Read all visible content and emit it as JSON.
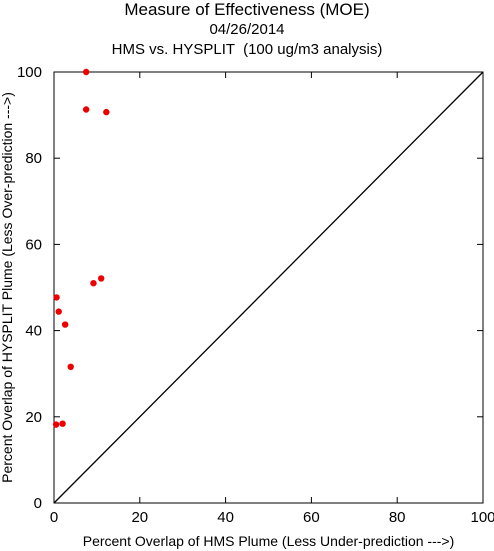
{
  "chart_data": {
    "type": "scatter",
    "title": "Measure of Effectiveness (MOE)",
    "subtitle": "04/26/2014",
    "subtitle2": "HMS vs. HYSPLIT  (100 ug/m3 analysis)",
    "xlabel": "Percent Overlap of HMS Plume (Less Under-prediction --->)",
    "ylabel": "Percent Overlap of HYSPLIT Plume (Less Over-prediction --->)",
    "xlim": [
      0,
      100
    ],
    "ylim": [
      0,
      100
    ],
    "xticks": [
      "0",
      "20",
      "40",
      "60",
      "80",
      "100"
    ],
    "yticks": [
      "0",
      "20",
      "40",
      "60",
      "80",
      "100"
    ],
    "reference_line": "y = x",
    "grid": false,
    "point_color": "#ee0000",
    "points": [
      {
        "x": 7.5,
        "y": 100.0
      },
      {
        "x": 7.5,
        "y": 91.3
      },
      {
        "x": 12.2,
        "y": 90.7
      },
      {
        "x": 11.0,
        "y": 52.1
      },
      {
        "x": 9.2,
        "y": 51.0
      },
      {
        "x": 0.6,
        "y": 47.7
      },
      {
        "x": 1.1,
        "y": 44.4
      },
      {
        "x": 2.6,
        "y": 41.4
      },
      {
        "x": 3.9,
        "y": 31.6
      },
      {
        "x": 0.5,
        "y": 18.2
      },
      {
        "x": 2.0,
        "y": 18.4
      }
    ]
  }
}
